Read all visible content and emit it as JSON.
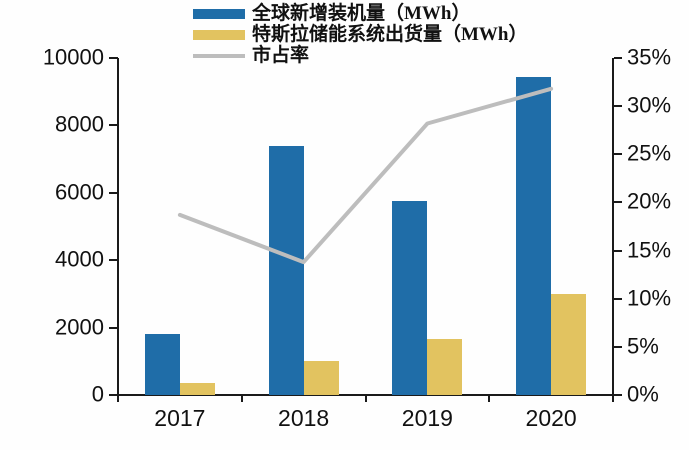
{
  "legend": {
    "items": [
      {
        "label": "全球新增装机量（MWh）",
        "color": "#1f6da8",
        "marker": "bar"
      },
      {
        "label": "特斯拉储能系统出货量（MWh）",
        "color": "#e2c360",
        "marker": "bar"
      },
      {
        "label": "市占率",
        "color": "#bdbdbd",
        "marker": "line"
      }
    ]
  },
  "chart_data": {
    "type": "bar",
    "subtype": "grouped-bars-with-line",
    "categories": [
      "2017",
      "2018",
      "2019",
      "2020"
    ],
    "series": [
      {
        "name": "全球新增装机量（MWh）",
        "type": "bar",
        "axis": "left",
        "color": "#1f6da8",
        "values": [
          1800,
          7400,
          5750,
          9450
        ]
      },
      {
        "name": "特斯拉储能系统出货量（MWh）",
        "type": "bar",
        "axis": "left",
        "color": "#e2c360",
        "values": [
          350,
          1000,
          1650,
          3000
        ]
      },
      {
        "name": "市占率",
        "type": "line",
        "axis": "right",
        "color": "#bdbdbd",
        "values": [
          18.7,
          13.8,
          28.2,
          31.8
        ]
      }
    ],
    "left_axis": {
      "min": 0,
      "max": 10000,
      "step": 2000,
      "tick_labels": [
        "0",
        "2000",
        "4000",
        "6000",
        "8000",
        "10000"
      ]
    },
    "right_axis": {
      "min": 0,
      "max": 35,
      "step": 5,
      "tick_labels": [
        "0%",
        "5%",
        "10%",
        "15%",
        "20%",
        "25%",
        "30%",
        "35%"
      ]
    },
    "grid": false,
    "legend_position": "top-left",
    "title": "",
    "xlabel": "",
    "ylabel_left": "",
    "ylabel_right": ""
  }
}
